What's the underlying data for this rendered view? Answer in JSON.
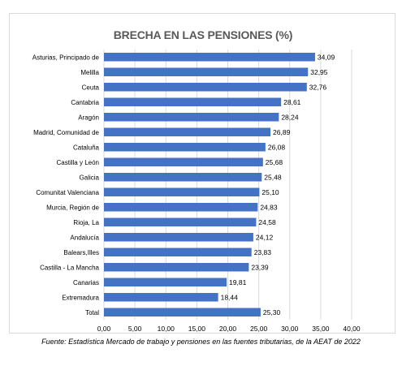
{
  "chart_data": {
    "type": "bar",
    "orientation": "horizontal",
    "title": "BRECHA EN LAS PENSIONES (%)",
    "categories": [
      "Asturias, Principado de",
      "Melilla",
      "Ceuta",
      "Cantabria",
      "Aragón",
      "Madrid, Comunidad de",
      "Cataluña",
      "Castilla y León",
      "Galicia",
      "Comunitat Valenciana",
      "Murcia, Región de",
      "Rioja, La",
      "Andalucía",
      "Balears,Illes",
      "Castilla - La Mancha",
      "Canarias",
      "Extremadura",
      "Total"
    ],
    "values": [
      34.09,
      32.95,
      32.76,
      28.61,
      28.24,
      26.89,
      26.08,
      25.68,
      25.48,
      25.1,
      24.83,
      24.58,
      24.12,
      23.83,
      23.39,
      19.81,
      18.44,
      25.3
    ],
    "value_labels": [
      "34,09",
      "32,95",
      "32,76",
      "28,61",
      "28,24",
      "26,89",
      "26,08",
      "25,68",
      "25,48",
      "25,10",
      "24,83",
      "24,58",
      "24,12",
      "23,83",
      "23,39",
      "19,81",
      "18,44",
      "25,30"
    ],
    "xlim": [
      0,
      40
    ],
    "xticks": [
      0,
      5,
      10,
      15,
      20,
      25,
      30,
      35,
      40
    ],
    "xtick_labels": [
      "0,00",
      "5,00",
      "10,00",
      "15,00",
      "20,00",
      "25,00",
      "30,00",
      "35,00",
      "40,00"
    ],
    "bar_color": "#4472c4",
    "grid": true,
    "legend": "none"
  },
  "source": "Fuente: Estadística Mercado de trabajo y pensiones en las fuentes tributarias, de la AEAT de 2022"
}
